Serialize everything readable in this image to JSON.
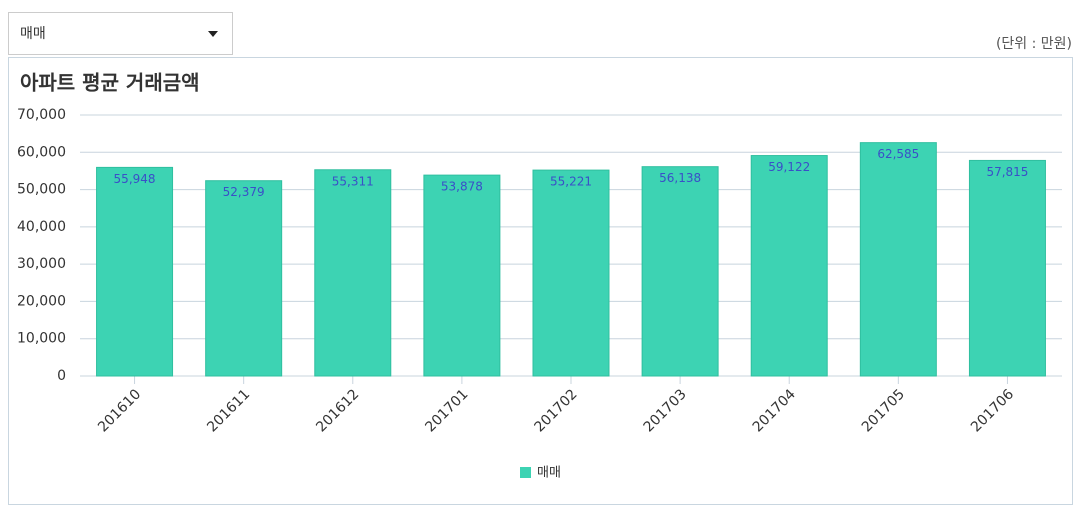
{
  "dropdown": {
    "label": "매매"
  },
  "unit_note": "(단위 : 만원)",
  "chart_data": {
    "type": "bar",
    "title": "아파트 평균 거래금액",
    "categories": [
      "201610",
      "201611",
      "201612",
      "201701",
      "201702",
      "201703",
      "201704",
      "201705",
      "201706"
    ],
    "series": [
      {
        "name": "매매",
        "color": "#3dd3b3",
        "values": [
          55948,
          52379,
          55311,
          53878,
          55221,
          56138,
          59122,
          62585,
          57815
        ],
        "value_labels": [
          "55,948",
          "52,379",
          "55,311",
          "53,878",
          "55,221",
          "56,138",
          "59,122",
          "62,585",
          "57,815"
        ]
      }
    ],
    "ylim": [
      0,
      70000
    ],
    "yticks": [
      0,
      {
        "value": 10000,
        "label": "10,000"
      },
      {
        "value": 20000,
        "label": "20,000"
      },
      {
        "value": 30000,
        "label": "30,000"
      },
      {
        "value": 40000,
        "label": "40,000"
      },
      {
        "value": 50000,
        "label": "50,000"
      },
      {
        "value": 60000,
        "label": "60,000"
      },
      {
        "value": 70000,
        "label": "70,000"
      }
    ],
    "grid": true,
    "legend": "bottom"
  }
}
